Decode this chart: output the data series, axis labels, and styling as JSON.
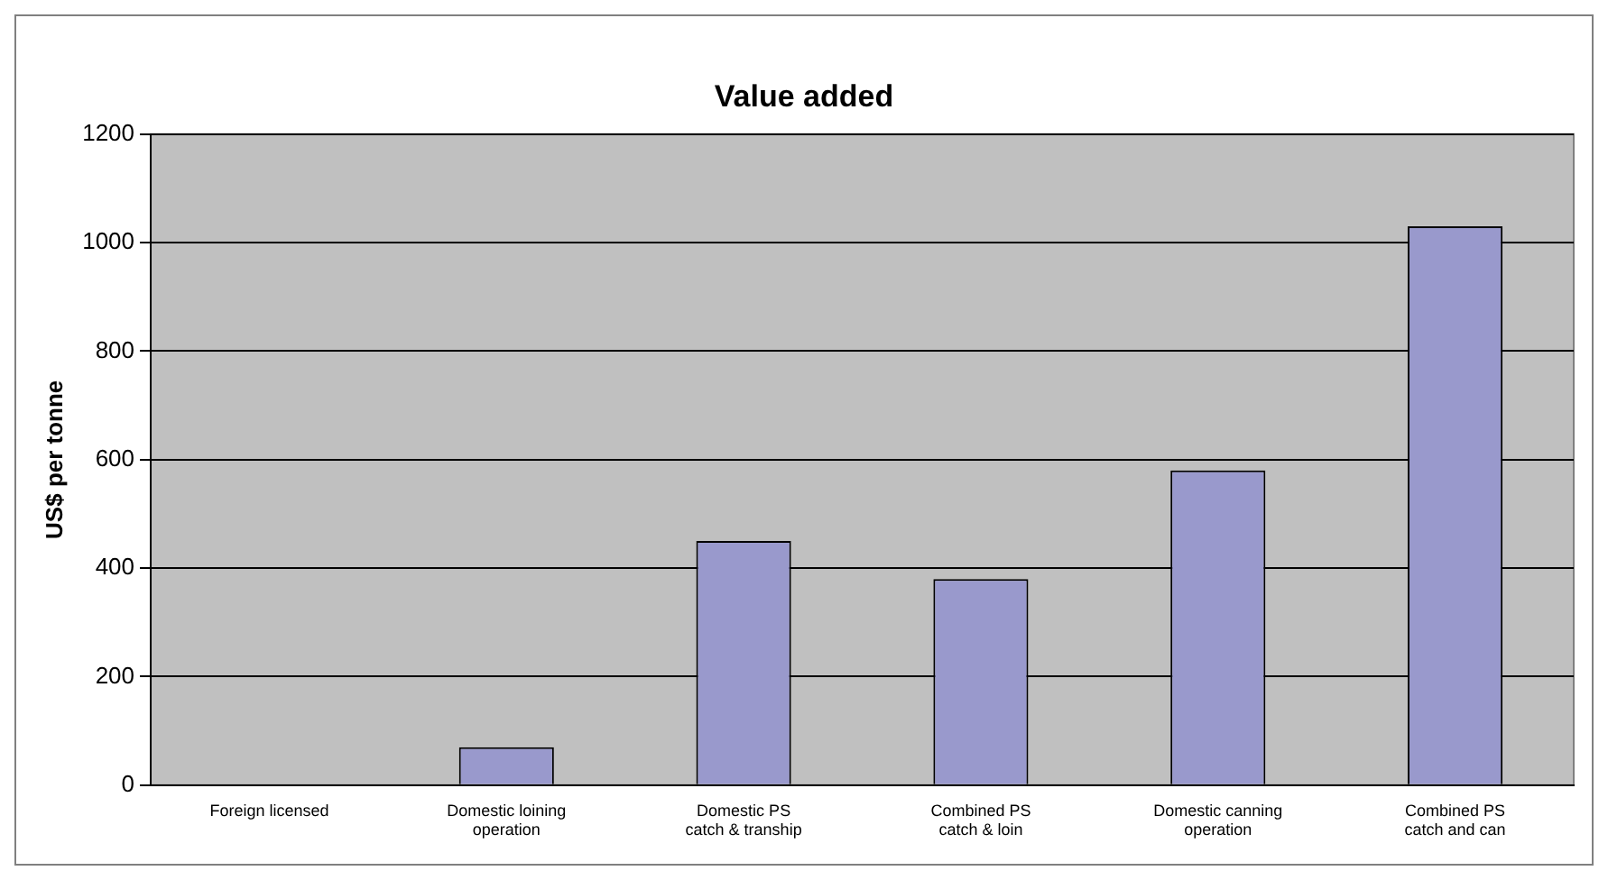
{
  "chart_data": {
    "type": "bar",
    "title": "Value added",
    "ylabel": "US$ per tonne",
    "categories": [
      "Foreign licensed",
      "Domestic loining operation",
      "Domestic PS catch & tranship",
      "Combined PS catch & loin",
      "Domestic canning operation",
      "Combined PS catch and can"
    ],
    "values": [
      0,
      70,
      450,
      380,
      580,
      1030
    ],
    "color": "#9999cc",
    "ylim": [
      0,
      1200
    ],
    "yticks": [
      0,
      200,
      400,
      600,
      800,
      1000,
      1200
    ],
    "grid": "y",
    "legend": false
  }
}
